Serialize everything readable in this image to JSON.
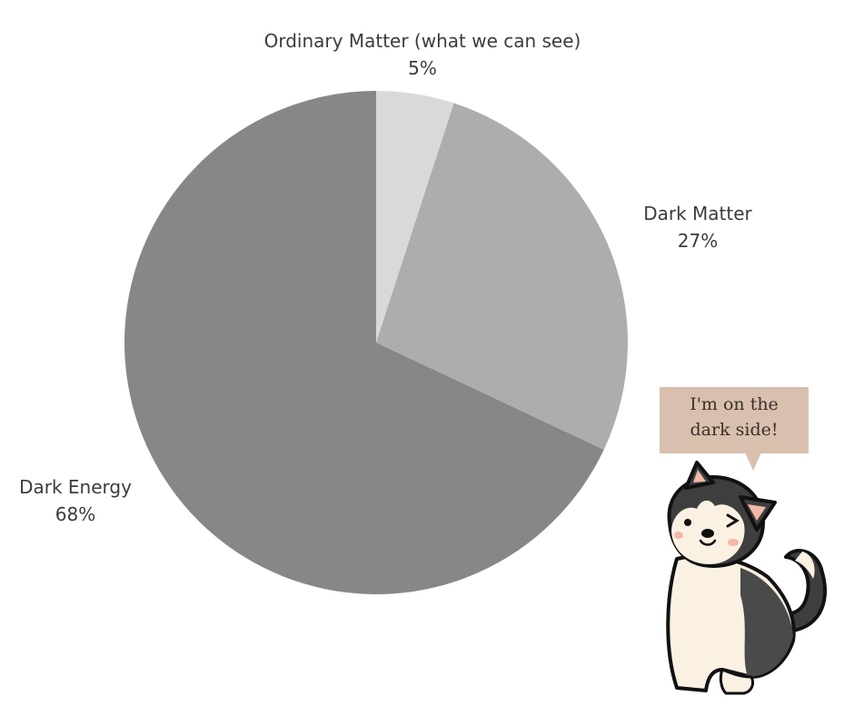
{
  "chart_data": {
    "type": "pie",
    "slices": [
      {
        "label": "Ordinary Matter (what we can see)",
        "value": 5,
        "value_label": "5%",
        "color": "#d9d9d9"
      },
      {
        "label": "Dark Matter",
        "value": 27,
        "value_label": "27%",
        "color": "#adadad"
      },
      {
        "label": "Dark Energy",
        "value": 68,
        "value_label": "68%",
        "color": "#878787"
      }
    ],
    "start_angle": "12 o'clock",
    "direction": "clockwise",
    "legend": "none (labels outside slices)"
  },
  "callout": {
    "text_line1": "I'm on the",
    "text_line2": "dark side!",
    "background": "#d9c0ae"
  },
  "illustration": {
    "icon": "husky-dog-icon",
    "colors": [
      "#3e3e3e",
      "#fbf1e3",
      "#f2b8a8"
    ]
  }
}
